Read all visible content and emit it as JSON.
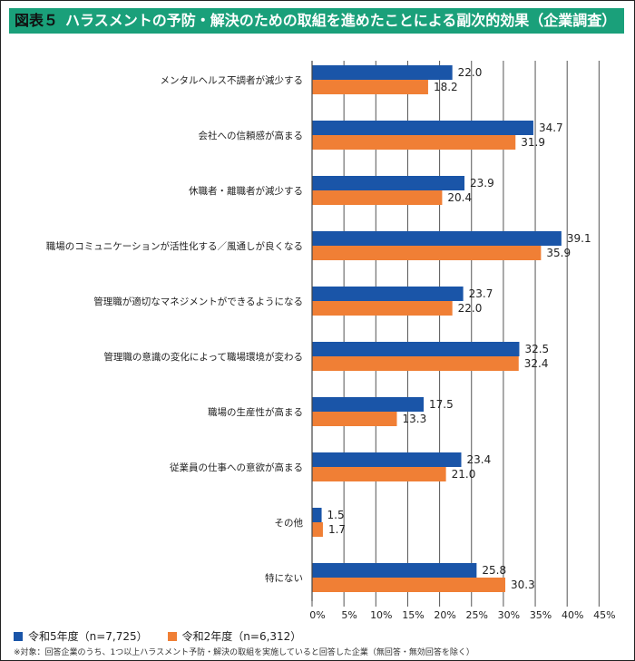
{
  "title": {
    "number": "図表５",
    "text": "ハラスメントの予防・解決のための取組を進めたことによる副次的効果（企業調査）"
  },
  "chart_data": {
    "type": "bar",
    "orientation": "horizontal",
    "categories": [
      "メンタルヘルス不調者が減少する",
      "会社への信頼感が高まる",
      "休職者・離職者が減少する",
      "職場のコミュニケーションが活性化する／風通しが良くなる",
      "管理職が適切なマネジメントができるようになる",
      "管理職の意識の変化によって職場環境が変わる",
      "職場の生産性が高まる",
      "従業員の仕事への意欲が高まる",
      "その他",
      "特にない"
    ],
    "series": [
      {
        "name": "令和5年度（n=7,725）",
        "color": "#1a55a8",
        "values": [
          22.0,
          34.7,
          23.9,
          39.1,
          23.7,
          32.5,
          17.5,
          23.4,
          1.5,
          25.8
        ]
      },
      {
        "name": "令和2年度（n=6,312）",
        "color": "#f07f35",
        "values": [
          18.2,
          31.9,
          20.4,
          35.9,
          22.0,
          32.4,
          13.3,
          21.0,
          1.7,
          30.3
        ]
      }
    ],
    "xlim": [
      0,
      45
    ],
    "xticks": [
      "0%",
      "5%",
      "10%",
      "15%",
      "20%",
      "25%",
      "30%",
      "35%",
      "40%",
      "45%"
    ],
    "grid": true,
    "legend": "bottom-left"
  },
  "note": "※対象：回答企業のうち、1つ以上ハラスメント予防・解決の取組を実施していると回答した企業（無回答・無効回答を除く）"
}
